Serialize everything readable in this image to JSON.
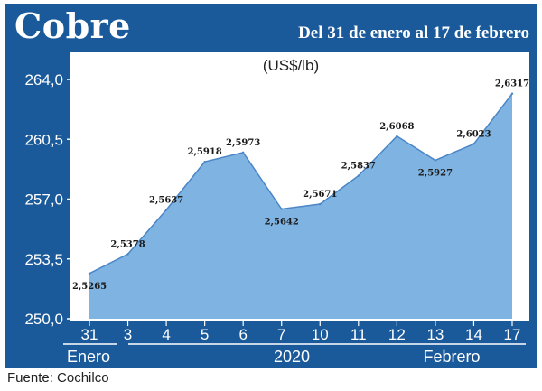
{
  "header": {
    "title": "Cobre",
    "subtitle": "Del 31 de enero al 17 de febrero"
  },
  "footer": {
    "source": "Fuente: Cochilco"
  },
  "colors": {
    "frame": "#1a5a9a",
    "area": "#7fb4e2",
    "line": "#4a86c6",
    "plot_bg": "#ffffff"
  },
  "chart_data": {
    "type": "area",
    "unit_label": "(US$/lb)",
    "categories": [
      "31",
      "3",
      "4",
      "5",
      "6",
      "7",
      "10",
      "11",
      "12",
      "13",
      "14",
      "17"
    ],
    "series": [
      {
        "values": [
          252.65,
          253.78,
          256.37,
          259.18,
          259.73,
          256.42,
          256.71,
          258.37,
          260.68,
          259.27,
          260.23,
          263.17
        ],
        "labels": [
          "2,5265",
          "2,5378",
          "2,5637",
          "2,5918",
          "2,5973",
          "2,5642",
          "2,5671",
          "2,5837",
          "2,6068",
          "2,5927",
          "2,6023",
          "2,6317"
        ]
      }
    ],
    "yticks": [
      "250,0",
      "253,5",
      "257,0",
      "260,5",
      "264,0"
    ],
    "ylim": [
      250.0,
      264.0
    ],
    "period_labels": {
      "left": "Enero",
      "center": "2020",
      "right": "Febrero"
    },
    "grid": false
  }
}
